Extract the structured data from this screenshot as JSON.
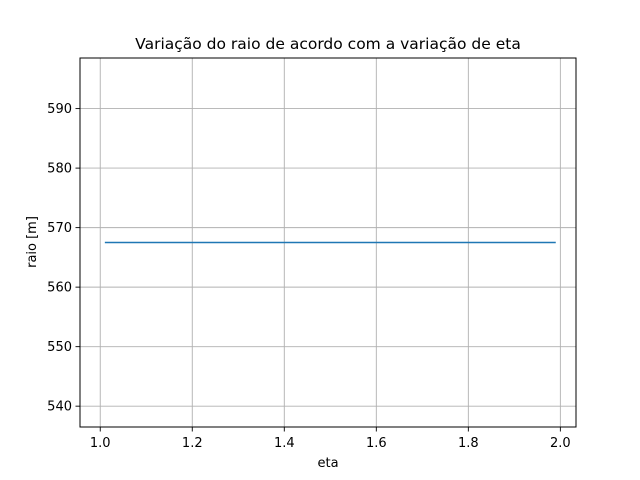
{
  "chart_data": {
    "type": "line",
    "title": "Variação do raio de acordo com a variação de eta",
    "xlabel": "eta",
    "ylabel": "raio [m]",
    "xlim": [
      0.956,
      2.034
    ],
    "ylim": [
      536.5,
      598.5
    ],
    "xticks": [
      1.0,
      1.2,
      1.4,
      1.6,
      1.8,
      2.0
    ],
    "xtick_labels": [
      "1.0",
      "1.2",
      "1.4",
      "1.6",
      "1.8",
      "2.0"
    ],
    "yticks": [
      540,
      550,
      560,
      570,
      580,
      590
    ],
    "ytick_labels": [
      "540",
      "550",
      "560",
      "570",
      "580",
      "590"
    ],
    "grid": true,
    "series": [
      {
        "color": "#1f77b4",
        "x": [
          1.01,
          1.99
        ],
        "y": [
          567.5,
          567.5
        ]
      }
    ]
  }
}
